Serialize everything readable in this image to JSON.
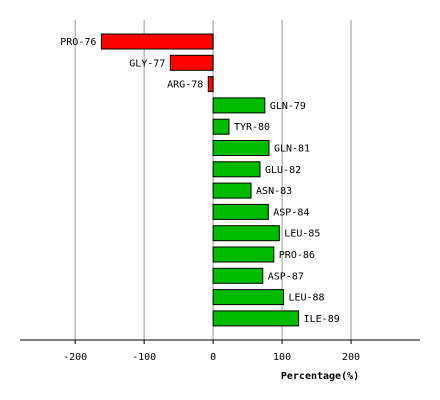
{
  "chart_data": {
    "type": "bar",
    "orientation": "horizontal",
    "xlabel": "Percentage(%)",
    "xlim": [
      -280,
      300
    ],
    "x_ticks": [
      -200,
      -100,
      0,
      100,
      200
    ],
    "x_tick_labels": [
      "-200",
      "-100",
      "0",
      "100",
      "200"
    ],
    "grid": true,
    "categories": [
      "PRO-76",
      "GLY-77",
      "ARG-78",
      "GLN-79",
      "TYR-80",
      "GLN-81",
      "GLU-82",
      "ASN-83",
      "ASP-84",
      "LEU-85",
      "PRO-86",
      "ASP-87",
      "LEU-88",
      "ILE-89"
    ],
    "values": [
      -162,
      -62,
      -7,
      75,
      23,
      81,
      68,
      55,
      80,
      96,
      88,
      72,
      102,
      124
    ],
    "colors": {
      "negative": "#ff0000",
      "positive": "#00bb00",
      "outline": "#000000",
      "grid": "#999999"
    }
  }
}
